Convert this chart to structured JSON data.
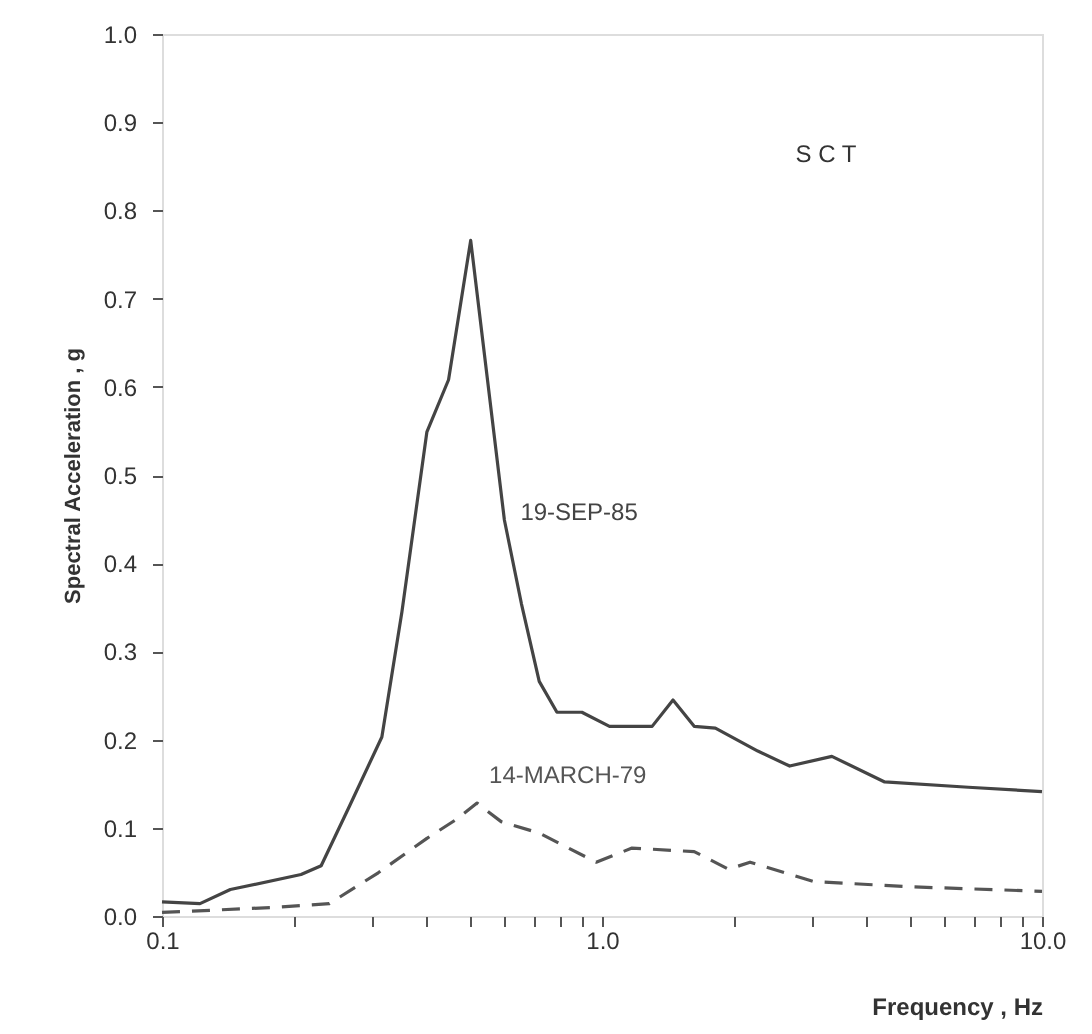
{
  "chart_data": {
    "type": "line",
    "xlabel": "Frequency , Hz",
    "ylabel": "Spectral  Acceleration , g",
    "annotations": [
      "S C T"
    ],
    "log": "x",
    "grid": false,
    "marker": "none",
    "xlim": [
      0.1,
      10
    ],
    "ylim": [
      0,
      1.0
    ],
    "xticks": [
      {
        "value": 0.1,
        "label": "0.1"
      },
      {
        "value": 0.2,
        "label": null
      },
      {
        "value": 0.3,
        "label": null
      },
      {
        "value": 0.4,
        "label": null
      },
      {
        "value": 0.5,
        "label": null
      },
      {
        "value": 0.6,
        "label": null
      },
      {
        "value": 0.7,
        "label": null
      },
      {
        "value": 0.8,
        "label": null
      },
      {
        "value": 0.9,
        "label": null
      },
      {
        "value": 1,
        "label": "1.0"
      },
      {
        "value": 2,
        "label": null
      },
      {
        "value": 3,
        "label": null
      },
      {
        "value": 4,
        "label": null
      },
      {
        "value": 5,
        "label": null
      },
      {
        "value": 6,
        "label": null
      },
      {
        "value": 7,
        "label": null
      },
      {
        "value": 8,
        "label": null
      },
      {
        "value": 9,
        "label": null
      },
      {
        "value": 10,
        "label": "10.0"
      }
    ],
    "yticks": [
      {
        "value": 0,
        "label": "0.0"
      },
      0.1,
      0.2,
      0.3,
      0.4,
      0.5,
      0.6,
      0.7,
      0.8,
      0.9,
      {
        "value": 1,
        "label": "1.0"
      }
    ],
    "series": [
      {
        "name": "19-SEP-85",
        "color": "#444444",
        "line_style": "solid",
        "x": [
          0.1,
          0.122,
          0.143,
          0.207,
          0.23,
          0.267,
          0.316,
          0.351,
          0.4,
          0.448,
          0.503,
          0.6,
          0.656,
          0.72,
          0.79,
          0.9,
          1.04,
          1.3,
          1.45,
          1.62,
          1.81,
          2.26,
          2.67,
          3.33,
          4.39,
          6.8,
          10
        ],
        "values": [
          0.016,
          0.014,
          0.03,
          0.047,
          0.057,
          0.125,
          0.203,
          0.345,
          0.549,
          0.608,
          0.766,
          0.449,
          0.354,
          0.266,
          0.231,
          0.231,
          0.215,
          0.215,
          0.245,
          0.215,
          0.213,
          0.187,
          0.17,
          0.181,
          0.152,
          0.146,
          0.141
        ]
      },
      {
        "name": "14-MARCH-79",
        "color": "#555555",
        "line_style": "dashed",
        "x": [
          0.1,
          0.184,
          0.24,
          0.31,
          0.4,
          0.465,
          0.52,
          0.59,
          0.72,
          0.97,
          1.17,
          1.62,
          1.94,
          2.17,
          3.03,
          5.1,
          10
        ],
        "values": [
          0.004,
          0.01,
          0.014,
          0.049,
          0.088,
          0.109,
          0.128,
          0.107,
          0.094,
          0.061,
          0.077,
          0.073,
          0.053,
          0.061,
          0.039,
          0.033,
          0.028
        ]
      }
    ]
  }
}
